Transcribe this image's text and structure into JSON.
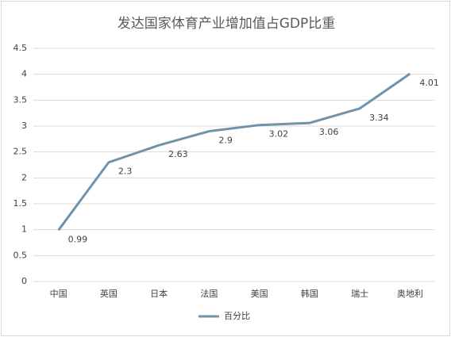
{
  "chart_data": {
    "type": "line",
    "title": "发达国家体育产业增加值占GDP比重",
    "categories": [
      "中国",
      "英国",
      "日本",
      "法国",
      "美国",
      "韩国",
      "瑞士",
      "奥地利"
    ],
    "series": [
      {
        "name": "百分比",
        "color": "#6f93ad",
        "values": [
          0.99,
          2.3,
          2.63,
          2.9,
          3.02,
          3.06,
          3.34,
          4.01
        ]
      }
    ],
    "ylim": [
      0,
      4.5
    ],
    "yticks": [
      0,
      0.5,
      1,
      1.5,
      2,
      2.5,
      3,
      3.5,
      4,
      4.5
    ],
    "grid": true,
    "legend": "bottom"
  }
}
